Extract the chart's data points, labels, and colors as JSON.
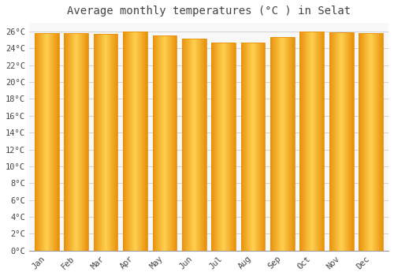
{
  "title": "Average monthly temperatures (°C ) in Selat",
  "months": [
    "Jan",
    "Feb",
    "Mar",
    "Apr",
    "May",
    "Jun",
    "Jul",
    "Aug",
    "Sep",
    "Oct",
    "Nov",
    "Dec"
  ],
  "values": [
    25.8,
    25.8,
    25.7,
    26.0,
    25.5,
    25.1,
    24.7,
    24.7,
    25.3,
    26.0,
    25.9,
    25.8
  ],
  "bar_color_edge": "#E8900A",
  "bar_color_center": "#FFD050",
  "background_color": "#FFFFFF",
  "plot_bg_color": "#F8F8F8",
  "grid_color": "#CCCCCC",
  "text_color": "#444444",
  "title_fontsize": 10,
  "tick_fontsize": 7.5,
  "ylim": [
    0,
    27
  ],
  "ytick_step": 2,
  "bar_width": 0.82
}
